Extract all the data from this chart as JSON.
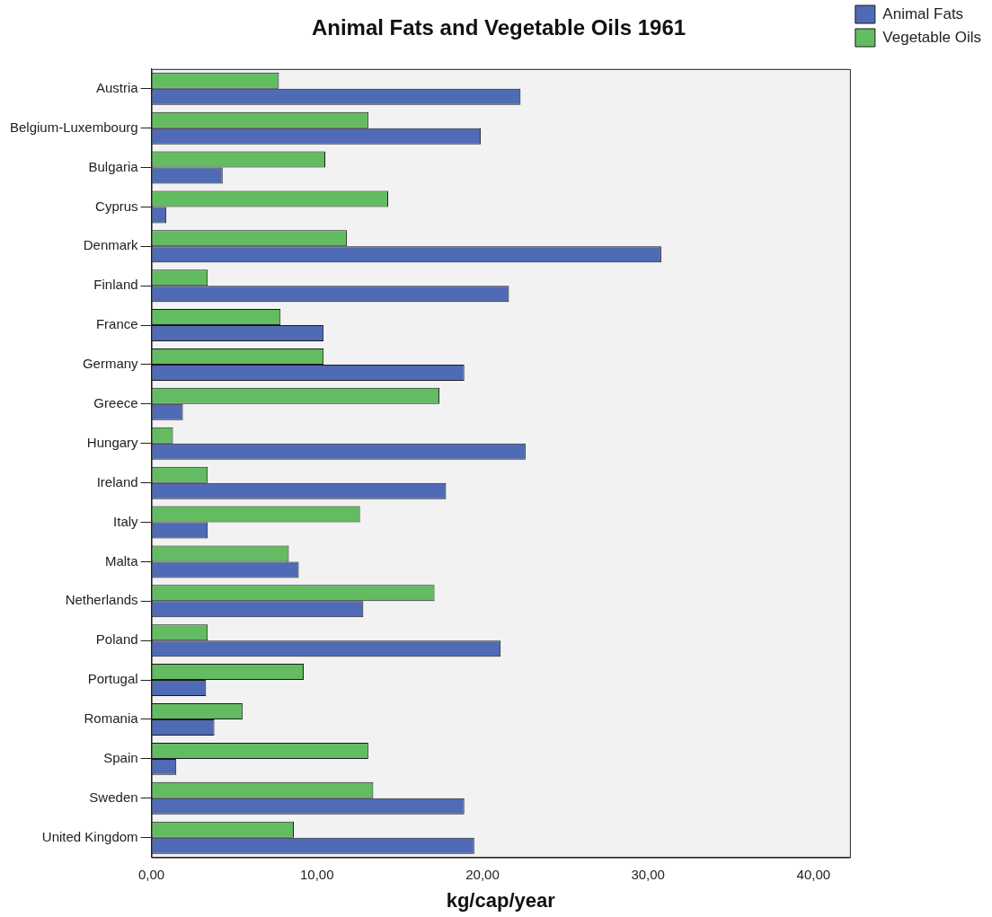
{
  "chart_data": {
    "type": "bar",
    "orientation": "horizontal",
    "title": "Animal Fats and Vegetable Oils 1961",
    "xlabel": "kg/cap/year",
    "categories": [
      "Austria",
      "Belgium-Luxembourg",
      "Bulgaria",
      "Cyprus",
      "Denmark",
      "Finland",
      "France",
      "Germany",
      "Greece",
      "Hungary",
      "Ireland",
      "Italy",
      "Malta",
      "Netherlands",
      "Poland",
      "Portugal",
      "Romania",
      "Spain",
      "Sweden",
      "United Kingdom"
    ],
    "series": [
      {
        "name": "Animal Fats",
        "color": "#4f6bb5",
        "values": [
          22.3,
          19.9,
          4.3,
          0.9,
          30.8,
          21.6,
          10.4,
          18.9,
          1.9,
          22.6,
          17.8,
          3.4,
          8.9,
          12.8,
          21.1,
          3.3,
          3.8,
          1.5,
          18.9,
          19.5
        ]
      },
      {
        "name": "Vegetable Oils",
        "color": "#63bb62",
        "values": [
          7.7,
          13.1,
          10.5,
          14.3,
          11.8,
          3.4,
          7.8,
          10.4,
          17.4,
          1.3,
          3.4,
          12.6,
          8.3,
          17.1,
          3.4,
          9.2,
          5.5,
          13.1,
          13.4,
          8.6
        ]
      }
    ],
    "xlim": [
      0,
      42.2
    ],
    "xticks": [
      {
        "value": 0,
        "label": "0,00"
      },
      {
        "value": 10,
        "label": "10,00"
      },
      {
        "value": 20,
        "label": "20,00"
      },
      {
        "value": 30,
        "label": "30,00"
      },
      {
        "value": 40,
        "label": "40,00"
      }
    ],
    "grid": false,
    "legend": "top right"
  }
}
